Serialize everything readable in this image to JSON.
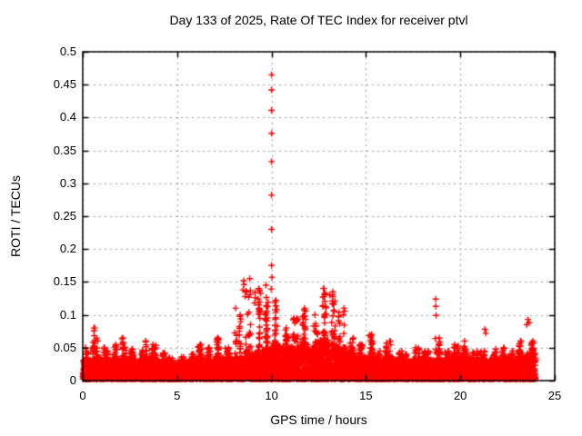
{
  "chart_data": {
    "type": "scatter",
    "title": "Day 133 of 2025, Rate Of TEC Index for receiver ptvl",
    "xlabel": "GPS time / hours",
    "ylabel": "ROTI / TECUs",
    "xlim": [
      0,
      25
    ],
    "ylim": [
      0,
      0.5
    ],
    "xticks": [
      0,
      5,
      10,
      15,
      20,
      25
    ],
    "yticks": [
      0,
      0.05,
      0.1,
      0.15,
      0.2,
      0.25,
      0.3,
      0.35,
      0.4,
      0.45,
      0.5
    ],
    "xtick_labels": [
      "0",
      "5",
      "10",
      "15",
      "20",
      "25"
    ],
    "ytick_labels": [
      "0",
      "0.05",
      "0.1",
      "0.15",
      "0.2",
      "0.25",
      "0.3",
      "0.35",
      "0.4",
      "0.45",
      "0.5"
    ],
    "grid": true,
    "grid_style": "dashed",
    "legend": "none",
    "marker": "+",
    "marker_color": "#ff0000",
    "grid_color": "#9e9e9e",
    "axis_color": "#000000",
    "background_color": "#ffffff",
    "data_time_span_hours": [
      0,
      24
    ],
    "series_description": "Dense cloud of ROTI values (red plus markers) for all satellites across the day; bulk of points lie between 0 and ~0.05 TECU with burst structures 8-14 h and an extreme spike column at 10 h reaching 0.465.",
    "dense_band": {
      "bin_width_hours": 0.5,
      "bin_start_hour": 0,
      "floor": 0.002,
      "band_max": [
        0.03,
        0.035,
        0.03,
        0.032,
        0.032,
        0.03,
        0.032,
        0.032,
        0.028,
        0.025,
        0.025,
        0.028,
        0.032,
        0.03,
        0.035,
        0.032,
        0.035,
        0.04,
        0.04,
        0.045,
        0.055,
        0.05,
        0.05,
        0.055,
        0.05,
        0.06,
        0.055,
        0.05,
        0.04,
        0.035,
        0.035,
        0.032,
        0.035,
        0.03,
        0.028,
        0.032,
        0.03,
        0.03,
        0.03,
        0.035,
        0.035,
        0.03,
        0.03,
        0.03,
        0.032,
        0.03,
        0.035,
        0.04
      ],
      "spike_max": [
        0.05,
        0.08,
        0.05,
        0.055,
        0.065,
        0.048,
        0.06,
        0.055,
        0.042,
        0.035,
        0.036,
        0.04,
        0.055,
        0.05,
        0.065,
        0.05,
        0.11,
        0.155,
        0.14,
        0.145,
        0.122,
        0.08,
        0.095,
        0.11,
        0.1,
        0.14,
        0.135,
        0.11,
        0.065,
        0.055,
        0.07,
        0.045,
        0.06,
        0.045,
        0.04,
        0.05,
        0.045,
        0.065,
        0.045,
        0.055,
        0.06,
        0.045,
        0.045,
        0.048,
        0.05,
        0.045,
        0.06,
        0.06
      ]
    },
    "outliers": [
      [
        10.0,
        0.465
      ],
      [
        10.0,
        0.442
      ],
      [
        10.0,
        0.411
      ],
      [
        10.0,
        0.376
      ],
      [
        10.0,
        0.333
      ],
      [
        10.0,
        0.282
      ],
      [
        10.0,
        0.23
      ],
      [
        10.0,
        0.175
      ],
      [
        10.02,
        0.157
      ],
      [
        9.98,
        0.139
      ],
      [
        8.52,
        0.152
      ],
      [
        8.55,
        0.146
      ],
      [
        8.48,
        0.138
      ],
      [
        8.6,
        0.128
      ],
      [
        9.12,
        0.134
      ],
      [
        9.15,
        0.126
      ],
      [
        9.1,
        0.118
      ],
      [
        12.78,
        0.14
      ],
      [
        12.85,
        0.133
      ],
      [
        12.72,
        0.127
      ],
      [
        13.08,
        0.13
      ],
      [
        18.7,
        0.124
      ],
      [
        18.7,
        0.113
      ],
      [
        18.72,
        0.099
      ],
      [
        18.68,
        0.064
      ],
      [
        21.3,
        0.078
      ],
      [
        21.35,
        0.072
      ],
      [
        23.58,
        0.093
      ],
      [
        23.64,
        0.088
      ],
      [
        23.52,
        0.085
      ],
      [
        15.18,
        0.069
      ]
    ]
  }
}
